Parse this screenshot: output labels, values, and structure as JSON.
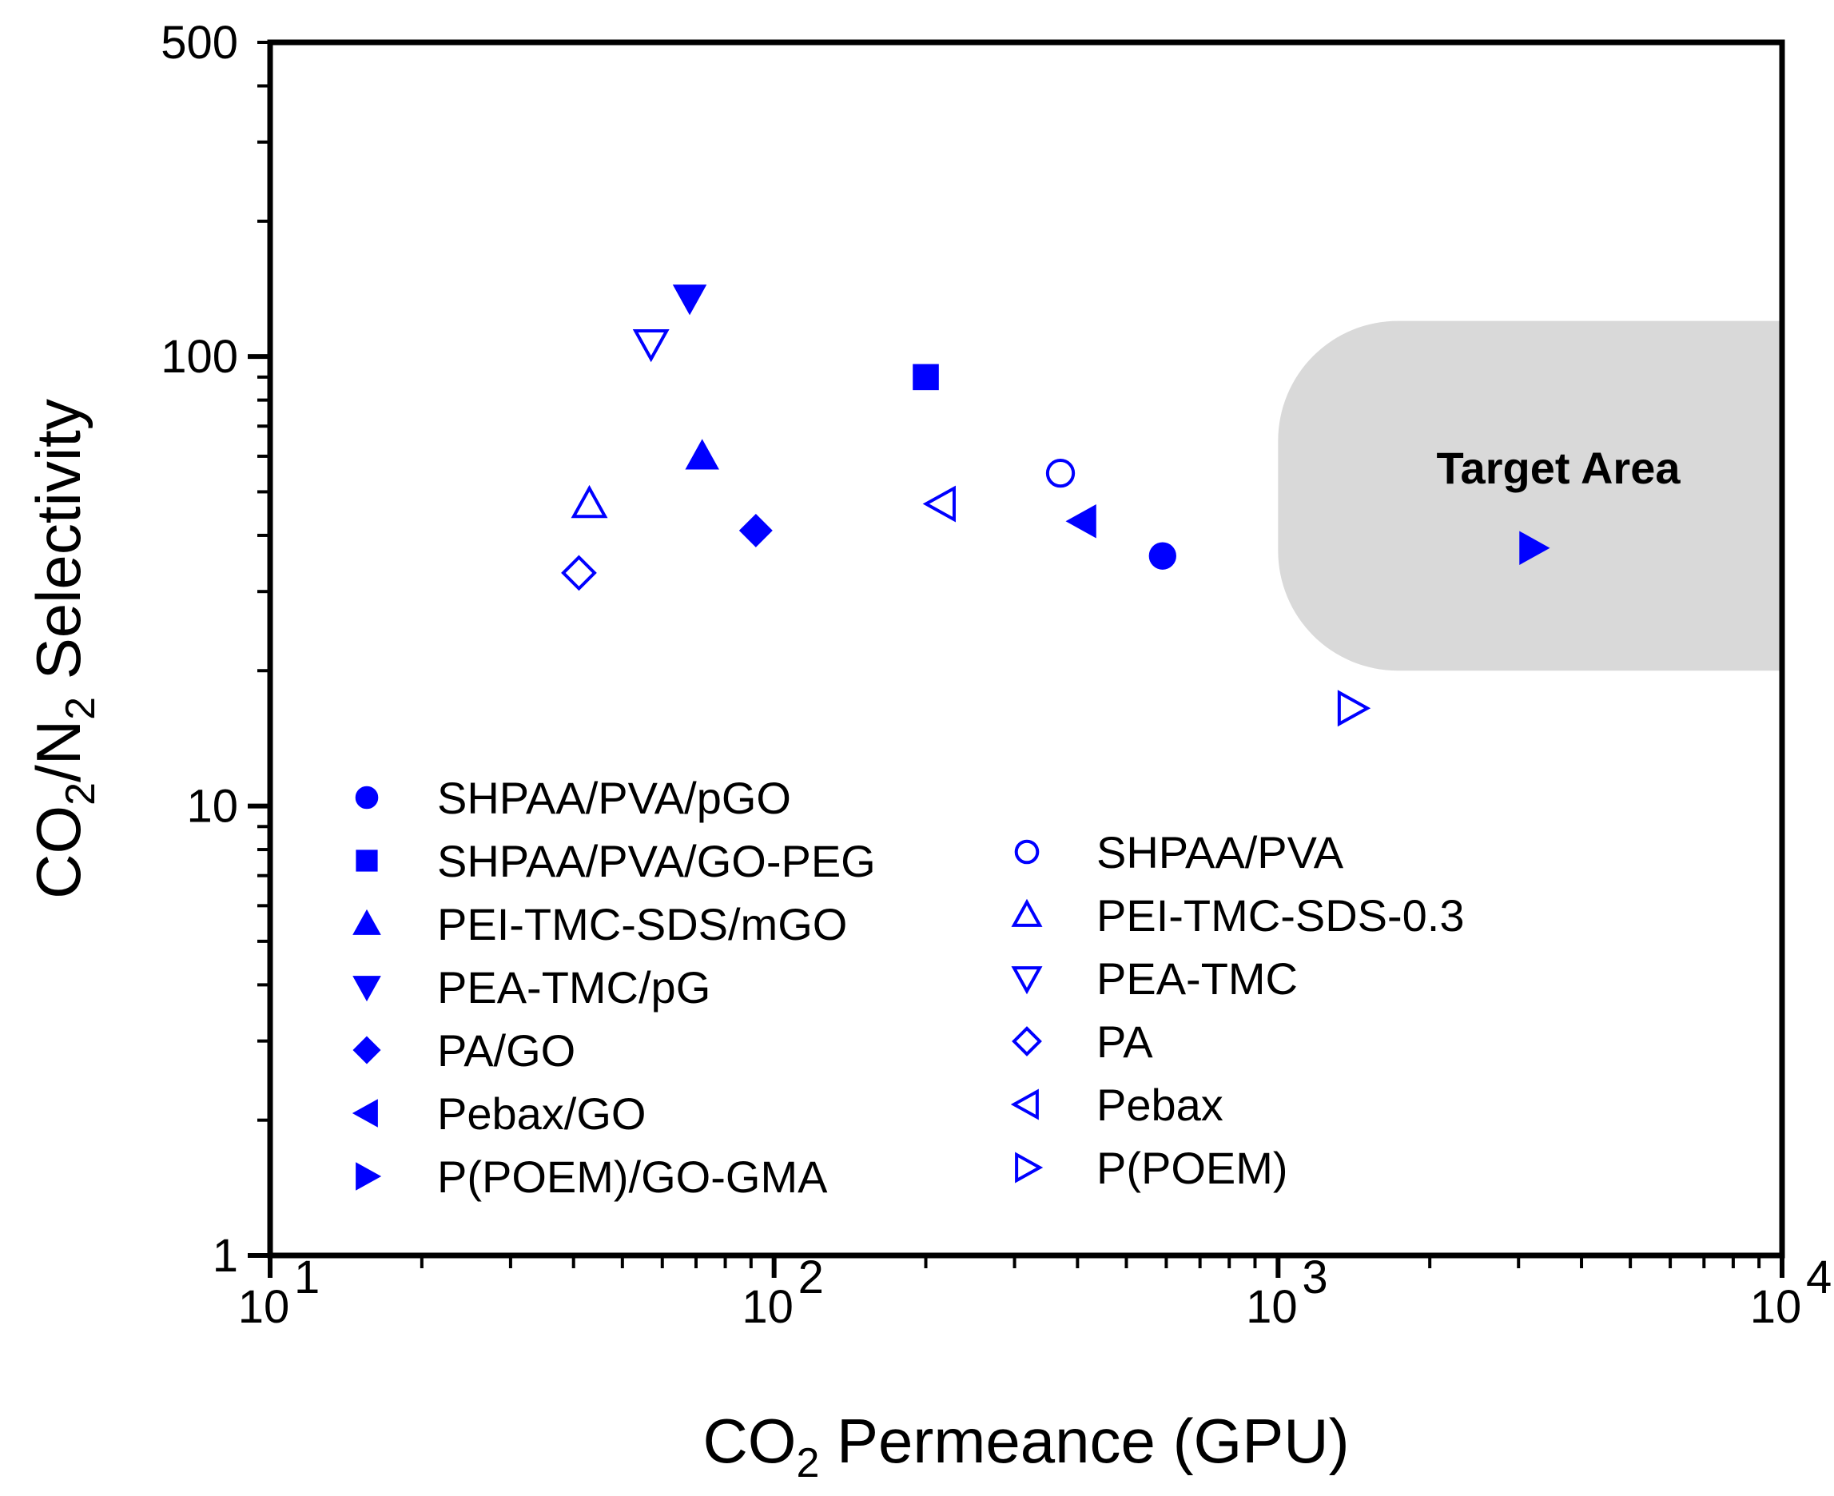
{
  "chart_data": {
    "type": "scatter",
    "xscale": "log",
    "yscale": "log",
    "xlim": [
      10,
      10000
    ],
    "ylim": [
      1,
      500
    ],
    "xlabel": {
      "main": "CO",
      "sub": "2",
      "rest": " Permeance (GPU)"
    },
    "ylabel": {
      "a": "CO",
      "b": "2",
      "c": "/N",
      "d": "2",
      "e": " Selectivity"
    },
    "x_ticks": [
      {
        "value": 10,
        "base": "10",
        "exp": "1"
      },
      {
        "value": 100,
        "base": "10",
        "exp": "2"
      },
      {
        "value": 1000,
        "base": "10",
        "exp": "3"
      },
      {
        "value": 10000,
        "base": "10",
        "exp": "4"
      }
    ],
    "y_ticks": [
      {
        "value": 1,
        "label": "1"
      },
      {
        "value": 10,
        "label": "10"
      },
      {
        "value": 100,
        "label": "100"
      },
      {
        "value": 500,
        "label": "500"
      }
    ],
    "color": "#0000ff",
    "target_area": {
      "label": "Target Area",
      "x_range": [
        1000,
        10000
      ],
      "y_range": [
        20,
        120
      ],
      "fill": "#d9d9d9"
    },
    "series": [
      {
        "name": "SHPAA/PVA/pGO",
        "marker": "circle",
        "filled": true,
        "points": [
          [
            590,
            36
          ]
        ]
      },
      {
        "name": "SHPAA/PVA/GO-PEG",
        "marker": "square",
        "filled": true,
        "points": [
          [
            200,
            90
          ]
        ]
      },
      {
        "name": "PEI-TMC-SDS/mGO",
        "marker": "triangle-up",
        "filled": true,
        "points": [
          [
            72,
            60
          ]
        ]
      },
      {
        "name": "PEA-TMC/pG",
        "marker": "triangle-down",
        "filled": true,
        "points": [
          [
            68,
            135
          ]
        ]
      },
      {
        "name": "PA/GO",
        "marker": "diamond",
        "filled": true,
        "points": [
          [
            92,
            41
          ]
        ]
      },
      {
        "name": "Pebax/GO",
        "marker": "triangle-left",
        "filled": true,
        "points": [
          [
            410,
            43
          ]
        ]
      },
      {
        "name": "P(POEM)/GO-GMA",
        "marker": "triangle-right",
        "filled": true,
        "points": [
          [
            3200,
            37.5
          ]
        ]
      },
      {
        "name": "SHPAA/PVA",
        "marker": "circle",
        "filled": false,
        "points": [
          [
            370,
            55
          ]
        ]
      },
      {
        "name": "PEI-TMC-SDS-0.3",
        "marker": "triangle-up",
        "filled": false,
        "points": [
          [
            43,
            47
          ]
        ]
      },
      {
        "name": "PEA-TMC",
        "marker": "triangle-down",
        "filled": false,
        "points": [
          [
            57,
            107
          ]
        ]
      },
      {
        "name": "PA",
        "marker": "diamond",
        "filled": false,
        "points": [
          [
            41,
            33
          ]
        ]
      },
      {
        "name": "Pebax",
        "marker": "triangle-left",
        "filled": false,
        "points": [
          [
            215,
            47
          ]
        ]
      },
      {
        "name": "P(POEM)",
        "marker": "triangle-right",
        "filled": false,
        "points": [
          [
            1400,
            16.5
          ]
        ]
      }
    ]
  }
}
